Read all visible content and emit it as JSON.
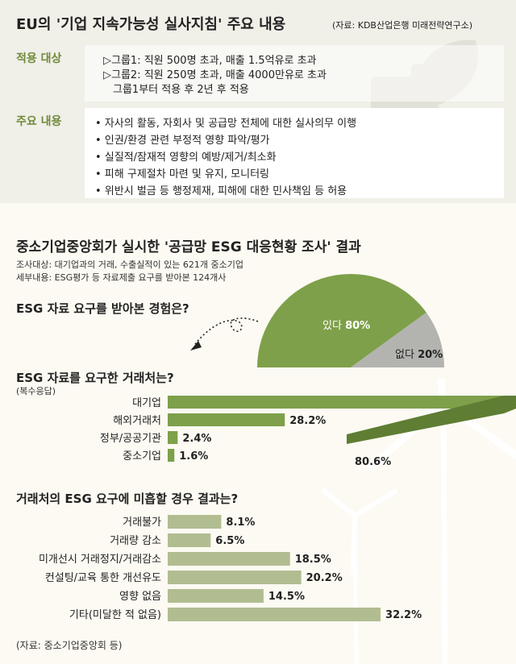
{
  "guideline": {
    "title": "EU의 '기업 지속가능성 실사지침' 주요 내용",
    "source": "(자료: KDB산업은행 미래전략연구소)",
    "scope_label": "적용 대상",
    "scope_lines": [
      "▷그룹1: 직원 500명 초과, 매출 1.5억유로 초과",
      "▷그룹2: 직원 250명 초과, 매출 4000만유로 초과",
      "그룹1부터 적용 후 2년 후 적용"
    ],
    "content_label": "주요 내용",
    "content_lines": [
      "• 자사의 활동, 자회사 및 공급망 전체에 대한 실사의무 이행",
      "• 인권/환경 관련 부정적 영향 파악/평가",
      "• 실질적/잠재적 영향의 예방/제거/최소화",
      "• 피해 구제절차 마련 및 유지, 모니터링",
      "• 위반시 벌금 등 행정제재, 피해에 대한 민사책임 등 허용"
    ]
  },
  "survey": {
    "title": "중소기업중앙회가 실시한 '공급망 ESG 대응현황 조사' 결과",
    "target": "조사대상: 대기업과의 거래, 수출실적이 있는 621개 중소기업",
    "detail": "세부내용: ESG평가 등 자료제출 요구를 받아본 124개사"
  },
  "footer_source": "(자료: 중소기업중앙회 등)",
  "colors": {
    "accent": "#7ea04a",
    "accent_dark": "#5f7d33",
    "gray": "#b3b3b0",
    "bar3": "#b1bd91"
  },
  "chart_data": [
    {
      "type": "pie",
      "title": "ESG 자료 요구를 받아본 경험은?",
      "categories": [
        "있다",
        "없다"
      ],
      "values": [
        80,
        20
      ],
      "value_labels": [
        "80%",
        "20%"
      ]
    },
    {
      "type": "bar",
      "title": "ESG 자료를 요구한 거래처는?",
      "subtitle": "(복수응답)",
      "categories": [
        "대기업",
        "해외거래처",
        "정부/공공기관",
        "중소기업"
      ],
      "values": [
        80.6,
        28.2,
        2.4,
        1.6
      ],
      "value_labels": [
        "80.6%",
        "28.2%",
        "2.4%",
        "1.6%"
      ]
    },
    {
      "type": "bar",
      "title": "거래처의 ESG 요구에 미흡할 경우 결과는?",
      "categories": [
        "거래불가",
        "거래량 감소",
        "미개선시 거래정지/거래감소",
        "컨설팅/교육 통한 개선유도",
        "영향 없음",
        "기타(미달한 적 없음)"
      ],
      "values": [
        8.1,
        6.5,
        18.5,
        20.2,
        14.5,
        32.2
      ],
      "value_labels": [
        "8.1%",
        "6.5%",
        "18.5%",
        "20.2%",
        "14.5%",
        "32.2%"
      ]
    }
  ]
}
